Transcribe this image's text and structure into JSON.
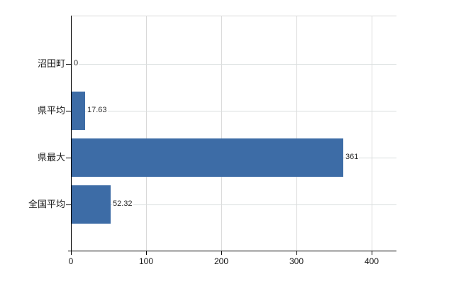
{
  "chart_data": {
    "type": "bar",
    "orientation": "horizontal",
    "title": "",
    "xlabel": "",
    "ylabel": "",
    "categories": [
      "沼田町",
      "県平均",
      "県最大",
      "全国平均"
    ],
    "values": [
      0,
      17.63,
      361,
      52.32
    ],
    "value_labels": [
      "0",
      "17.63",
      "361",
      "52.32"
    ],
    "x_ticks": [
      0,
      100,
      200,
      300,
      400
    ],
    "x_tick_labels": [
      "0",
      "100",
      "200",
      "300",
      "400"
    ],
    "xlim": [
      0,
      433
    ],
    "grid": true,
    "legend_position": "none",
    "bar_color": "#3d6ca6",
    "grid_color": "#d9d9d9",
    "axis_color": "#000000",
    "text_color": "#1a1a1a"
  }
}
